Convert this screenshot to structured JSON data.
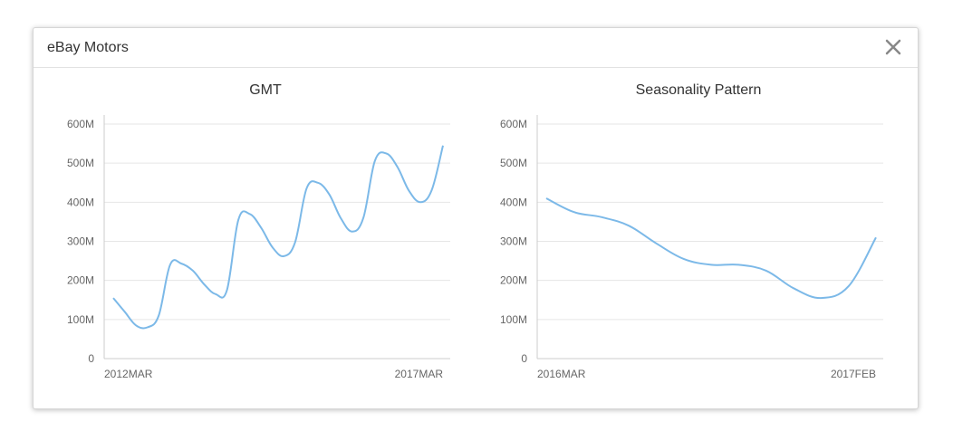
{
  "modal": {
    "title": "eBay Motors",
    "close_icon": "close-x-icon"
  },
  "colors": {
    "line": "#7cb9e8",
    "grid": "#e6e6e6",
    "close": "#888888"
  },
  "chart_data": [
    {
      "type": "line",
      "title": "GMT",
      "xlabel": "",
      "ylabel": "",
      "x_start_label": "2012MAR",
      "x_end_label": "2017MAR",
      "yticks": [
        "0",
        "100M",
        "200M",
        "300M",
        "400M",
        "500M",
        "600M"
      ],
      "ylim": [
        0,
        600000000
      ],
      "grid": true,
      "series": [
        {
          "values": [
            155000000,
            120000000,
            85000000,
            80000000,
            110000000,
            240000000,
            243000000,
            225000000,
            190000000,
            165000000,
            175000000,
            355000000,
            370000000,
            335000000,
            285000000,
            262000000,
            298000000,
            435000000,
            450000000,
            420000000,
            360000000,
            325000000,
            360000000,
            505000000,
            525000000,
            490000000,
            430000000,
            400000000,
            430000000,
            545000000
          ]
        }
      ]
    },
    {
      "type": "line",
      "title": "Seasonality Pattern",
      "xlabel": "",
      "ylabel": "",
      "x_start_label": "2016MAR",
      "x_end_label": "2017FEB",
      "yticks": [
        "0",
        "100M",
        "200M",
        "300M",
        "400M",
        "500M",
        "600M"
      ],
      "ylim": [
        0,
        600000000
      ],
      "grid": true,
      "series": [
        {
          "values": [
            410000000,
            375000000,
            362000000,
            340000000,
            295000000,
            255000000,
            240000000,
            240000000,
            225000000,
            180000000,
            155000000,
            185000000,
            310000000
          ]
        }
      ]
    }
  ]
}
